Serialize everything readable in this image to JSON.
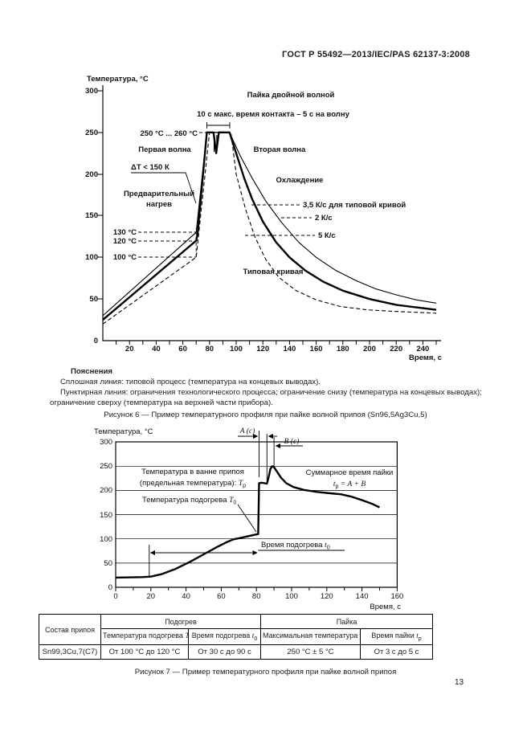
{
  "page": {
    "header": "ГОСТ Р 55492—2013/IEC/PAS 62137-3:2008",
    "page_number": "13"
  },
  "figure6": {
    "y_axis_title": "Температура, °С",
    "x_axis_title": "Время, с",
    "title": "Пайка двойной волной",
    "contact_note": "10 с макс. время контакта – 5 с на волну",
    "peak_range": "250 °С ... 260 °С",
    "wave1": "Первая волна",
    "wave2": "Вторая волна",
    "delta_t": "ΔT < 150 К",
    "preheat_line1": "Предварительный",
    "preheat_line2": "нагрев",
    "t130": "130 °С",
    "t120": "120 °С",
    "t100": "100 °С",
    "cooling": "Охлаждение",
    "rate_typical": "3,5 К/с для типовой кривой",
    "rate_slow": "2 К/с",
    "rate_fast": "5 К/с",
    "typical_curve": "Типовая кривая",
    "y_ticks": [
      "300",
      "250",
      "200",
      "150",
      "100",
      "50",
      "0"
    ],
    "x_ticks": [
      "20",
      "40",
      "60",
      "80",
      "100",
      "120",
      "140",
      "160",
      "180",
      "200",
      "220",
      "240"
    ]
  },
  "explanations": {
    "heading": "Пояснения",
    "line1": "Сплошная линия: типовой процесс (температура на концевых выводах).",
    "line2": "Пунктирная линия: ограничения технологического процесса; ограничение снизу (температура на концевых выводах); ограничение сверху (температура на верхней части прибора)."
  },
  "figure6_caption": "Рисунок 6 — Пример температурного профиля при пайке волной припоя (Sn96,5Ag3Cu,5)",
  "figure7": {
    "y_axis_title": "Температура, °С",
    "x_axis_title": "Время, с",
    "label_A": "A (с)",
    "label_B": "B (с)",
    "bath_line1": "Температура в ванне припоя",
    "bath_line2": "(предельная температура): ",
    "bath_sym": "T",
    "bath_sub": "р",
    "total_line1": "Суммарное время пайки",
    "total_sym": "t",
    "total_sub": "р",
    "total_rest": " = A + B",
    "preheat_temp_text": "Температура подогрева ",
    "preheat_temp_sym": "T",
    "preheat_temp_sub": "0",
    "preheat_time_text": "Время подогрева ",
    "preheat_time_sym": "t",
    "preheat_time_sub": "0",
    "y_ticks": [
      "300",
      "250",
      "200",
      "150",
      "100",
      "50",
      "0"
    ],
    "x_ticks": [
      "0",
      "20",
      "40",
      "60",
      "80",
      "100",
      "120",
      "140",
      "160"
    ]
  },
  "table": {
    "col_composition": "Состав припоя",
    "group_preheat": "Подогрев",
    "group_solder": "Пайка",
    "h_preheat_temp": {
      "text": "Температура подогрева ",
      "sym": "T",
      "sub": "0"
    },
    "h_preheat_time": {
      "text": "Время подогрева ",
      "sym": "t",
      "sub": "0"
    },
    "h_max_temp": {
      "text": "Максимальная температура ",
      "sym": "T",
      "sub": "р"
    },
    "h_solder_time": {
      "text": "Время пайки ",
      "sym": "t",
      "sub": "р"
    },
    "row": {
      "composition": "Sn99,3Cu,7(C7)",
      "preheat_temp": "От 100 °С до 120 °С",
      "preheat_time": "От 30 с до 90 с",
      "max_temp": "250 °С ± 5 °С",
      "solder_time": "От 3 с до 5 с"
    }
  },
  "figure7_caption": "Рисунок 7 — Пример температурного профиля при пайке волной припоя",
  "chart_data": [
    {
      "type": "line",
      "title": "Пайка двойной волной",
      "xlabel": "Время, с",
      "ylabel": "Температура, °С",
      "xlim": [
        0,
        250
      ],
      "ylim": [
        0,
        300
      ],
      "grid": false,
      "legend_position": "none",
      "series": [
        {
          "name": "типовой процесс — типовая кривая (охлаждение 3,5 К/с)",
          "style": "solid-thick",
          "points": [
            [
              0,
              25
            ],
            [
              70,
              120
            ],
            [
              71,
              128
            ],
            [
              78,
              250
            ],
            [
              83,
              250
            ],
            [
              85,
              225
            ],
            [
              87,
              250
            ],
            [
              95,
              250
            ],
            [
              100,
              225
            ],
            [
              106,
              195
            ],
            [
              112,
              170
            ],
            [
              120,
              143
            ],
            [
              130,
              118
            ],
            [
              140,
              100
            ],
            [
              152,
              84
            ],
            [
              165,
              71
            ],
            [
              180,
              60
            ],
            [
              200,
              50
            ],
            [
              220,
              43
            ],
            [
              240,
              39
            ],
            [
              250,
              37
            ]
          ]
        },
        {
          "name": "ограничение сверху (охлаждение 2 К/с)",
          "style": "solid-thin",
          "points": [
            [
              0,
              30
            ],
            [
              70,
              130
            ],
            [
              78,
              250
            ],
            [
              95,
              250
            ],
            [
              103,
              222
            ],
            [
              112,
              195
            ],
            [
              122,
              168
            ],
            [
              134,
              142
            ],
            [
              147,
              118
            ],
            [
              160,
              100
            ],
            [
              175,
              84
            ],
            [
              190,
              72
            ],
            [
              205,
              62
            ],
            [
              220,
              55
            ],
            [
              235,
              49
            ],
            [
              250,
              45
            ]
          ]
        },
        {
          "name": "ограничение снизу (охлаждение 5 К/с)",
          "style": "dashed",
          "points": [
            [
              0,
              20
            ],
            [
              70,
              100
            ],
            [
              80,
              250
            ],
            [
              96,
              250
            ],
            [
              100,
              200
            ],
            [
              107,
              158
            ],
            [
              114,
              125
            ],
            [
              122,
              98
            ],
            [
              132,
              76
            ],
            [
              145,
              60
            ],
            [
              160,
              49
            ],
            [
              178,
              41
            ],
            [
              198,
              37
            ],
            [
              220,
              35
            ],
            [
              250,
              33
            ]
          ]
        }
      ],
      "annotations": [
        "250 °С ... 260 °С",
        "10 с макс. время контакта – 5 с на волну",
        "ΔT < 150 К",
        "130 °С",
        "120 °С",
        "100 °С",
        "Первая волна",
        "Вторая волна",
        "Предварительный нагрев",
        "Охлаждение",
        "Типовая кривая"
      ]
    },
    {
      "type": "line",
      "title": "",
      "xlabel": "Время, с",
      "ylabel": "Температура, °С",
      "xlim": [
        0,
        160
      ],
      "ylim": [
        0,
        300
      ],
      "grid": true,
      "legend_position": "none",
      "series": [
        {
          "name": "температурный профиль при пайке волной",
          "style": "solid-thick",
          "points": [
            [
              0,
              20
            ],
            [
              15,
              21
            ],
            [
              20,
              22
            ],
            [
              26,
              27
            ],
            [
              34,
              38
            ],
            [
              42,
              52
            ],
            [
              50,
              68
            ],
            [
              57,
              82
            ],
            [
              63,
              93
            ],
            [
              67,
              99
            ],
            [
              71,
              102
            ],
            [
              76,
              106
            ],
            [
              81,
              110
            ],
            [
              81.5,
              215
            ],
            [
              83,
              216
            ],
            [
              86,
              214
            ],
            [
              87,
              228
            ],
            [
              88,
              245
            ],
            [
              89,
              250
            ],
            [
              90,
              248
            ],
            [
              92,
              237
            ],
            [
              94,
              226
            ],
            [
              97,
              215
            ],
            [
              101,
              207
            ],
            [
              107,
              201
            ],
            [
              114,
              197
            ],
            [
              122,
              194
            ],
            [
              128,
              192
            ],
            [
              134,
              187
            ],
            [
              140,
              180
            ],
            [
              146,
              172
            ],
            [
              150,
              165
            ]
          ]
        }
      ],
      "annotations": [
        "A (с)",
        "B (с)",
        "Температура в ванне припоя (предельная температура): Tр",
        "Суммарное время пайки tр = A + B",
        "Температура подогрева T0",
        "Время подогрева t0"
      ]
    }
  ]
}
